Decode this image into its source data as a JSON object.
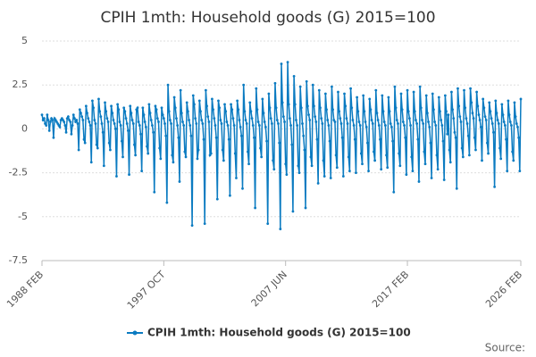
{
  "chart_data": {
    "type": "line",
    "title": "CPIH 1mth: Household goods (G) 2015=100",
    "categories": [
      "1988 FEB",
      null,
      null,
      null,
      null,
      null,
      null,
      null,
      null,
      null,
      null,
      null,
      null,
      null,
      null,
      null,
      null,
      null,
      null,
      null,
      null,
      null,
      null,
      null,
      null,
      null,
      null,
      null,
      null,
      null,
      null,
      null,
      null,
      null,
      null,
      null,
      null,
      null,
      null,
      null,
      null,
      null,
      null,
      null,
      null,
      null,
      null,
      null,
      null,
      null,
      null,
      null,
      null,
      null,
      null,
      null,
      null,
      null,
      null,
      null,
      null,
      null,
      null,
      null,
      null,
      null,
      null,
      null,
      null,
      null,
      null,
      null,
      null,
      null,
      null,
      null,
      null,
      null,
      null,
      null,
      null,
      null,
      null,
      null,
      null,
      null,
      null,
      null,
      null,
      null,
      null,
      null,
      null,
      null,
      null,
      null,
      null,
      null,
      null,
      null,
      null,
      null,
      null,
      null,
      null,
      null,
      null,
      null,
      null,
      null,
      null,
      null,
      null,
      null,
      null,
      null,
      "1997 OCT",
      null,
      null,
      null,
      null,
      null,
      null,
      null,
      null,
      null,
      null,
      null,
      null,
      null,
      null,
      null,
      null,
      null,
      null,
      null,
      null,
      null,
      null,
      null,
      null,
      null,
      null,
      null,
      null,
      null,
      null,
      null,
      null,
      null,
      null,
      null,
      null,
      null,
      null,
      null,
      null,
      null,
      null,
      null,
      null,
      null,
      null,
      null,
      null,
      null,
      null,
      null,
      null,
      null,
      null,
      null,
      null,
      null,
      null,
      null,
      null,
      null,
      null,
      null,
      null,
      null,
      null,
      null,
      null,
      null,
      null,
      null,
      null,
      null,
      null,
      null,
      null,
      null,
      null,
      null,
      null,
      null,
      null,
      null,
      null,
      null,
      null,
      null,
      null,
      null,
      null,
      null,
      null,
      null,
      null,
      null,
      null,
      null,
      null,
      null,
      null,
      null,
      null,
      null,
      null,
      null,
      null,
      null,
      null,
      null,
      null,
      null,
      null,
      null,
      null,
      null,
      "2007 JUN",
      null,
      null,
      null,
      null,
      null,
      null,
      null,
      null,
      null,
      null,
      null,
      null,
      null,
      null,
      null,
      null,
      null,
      null,
      null,
      null,
      null,
      null,
      null,
      null,
      null,
      null,
      null,
      null,
      null,
      null,
      null,
      null,
      null,
      null,
      null,
      null,
      null,
      null,
      null,
      null,
      null,
      null,
      null,
      null,
      null,
      null,
      null,
      null,
      null,
      null,
      null,
      null,
      null,
      null,
      null,
      null,
      null,
      null,
      null,
      null,
      null,
      null,
      null,
      null,
      null,
      null,
      null,
      null,
      null,
      null,
      null,
      null,
      null,
      null,
      null,
      null,
      null,
      null,
      null,
      null,
      null,
      null,
      null,
      null,
      null,
      null,
      null,
      null,
      null,
      null,
      null,
      null,
      null,
      null,
      null,
      null,
      null,
      null,
      null,
      null,
      null,
      null,
      null,
      null,
      null,
      null,
      null,
      null,
      null,
      null,
      null,
      null,
      null,
      null,
      null,
      "2017 FEB",
      null,
      null,
      null,
      null,
      null,
      null,
      null,
      null,
      null,
      null,
      null,
      null,
      null,
      null,
      null,
      null,
      null,
      null,
      null,
      null,
      null,
      null,
      null,
      null,
      null,
      null,
      null,
      null,
      null,
      null,
      null,
      null,
      null,
      null,
      null,
      null,
      null,
      null,
      null,
      null,
      null,
      null,
      null,
      null,
      null,
      null,
      null,
      null,
      null,
      null,
      null,
      null,
      null,
      null,
      null,
      null,
      null,
      null,
      null,
      null,
      null,
      null,
      null,
      null,
      null,
      null,
      null,
      null,
      null,
      null,
      null,
      null,
      null,
      null,
      null,
      null,
      null,
      null,
      null,
      null,
      null,
      null,
      null,
      null,
      null,
      null,
      null,
      null,
      null,
      null,
      null,
      null,
      null,
      null,
      null,
      null,
      null,
      null,
      null,
      null,
      null,
      null,
      null,
      null,
      null,
      null,
      null,
      "2026 FEB"
    ],
    "series": [
      {
        "name": "CPIH 1mth: Household goods (G) 2015=100",
        "color": "#0b7bc1",
        "values": [
          0.8,
          0.5,
          0.6,
          0.3,
          0.2,
          0.8,
          0.5,
          -0.1,
          0.4,
          0.6,
          0.5,
          -0.5,
          0.6,
          0.5,
          0.4,
          0.3,
          0.2,
          0.1,
          0.5,
          0.6,
          0.5,
          0.4,
          0.2,
          -0.2,
          0.6,
          0.7,
          0.5,
          0.4,
          -0.3,
          0.2,
          0.8,
          0.6,
          0.4,
          0.5,
          0.3,
          -1.2,
          1.1,
          0.9,
          0.7,
          0.5,
          -0.6,
          -0.8,
          1.3,
          0.9,
          0.6,
          0.4,
          0.2,
          -1.9,
          1.6,
          1.2,
          0.5,
          0.3,
          -0.9,
          -1.1,
          1.7,
          1.0,
          0.7,
          0.3,
          -0.2,
          -2.1,
          1.5,
          1.0,
          0.6,
          0.4,
          -0.8,
          -1.2,
          1.3,
          0.9,
          0.5,
          0.3,
          0.0,
          -2.7,
          1.4,
          1.1,
          0.4,
          0.2,
          -0.7,
          -1.6,
          1.2,
          1.0,
          0.6,
          0.3,
          -0.1,
          -2.6,
          1.3,
          0.9,
          0.5,
          0.3,
          -0.9,
          -1.5,
          1.1,
          1.2,
          0.4,
          0.2,
          -0.3,
          -2.4,
          1.2,
          0.8,
          0.4,
          0.1,
          -1.0,
          -1.4,
          1.4,
          0.9,
          0.5,
          0.2,
          -0.2,
          -3.6,
          1.3,
          1.1,
          0.6,
          0.4,
          -1.1,
          -1.7,
          1.2,
          0.8,
          0.6,
          0.3,
          -0.4,
          -4.2,
          2.5,
          1.0,
          0.5,
          0.3,
          -1.5,
          -1.9,
          1.8,
          1.2,
          0.6,
          0.2,
          -0.5,
          -3.0,
          2.2,
          0.9,
          0.4,
          0.2,
          -1.3,
          -1.6,
          1.5,
          1.0,
          0.5,
          0.2,
          -0.4,
          -5.5,
          1.9,
          1.4,
          0.6,
          0.3,
          -1.7,
          -1.2,
          1.6,
          1.0,
          0.5,
          0.3,
          -0.6,
          -5.4,
          2.2,
          1.3,
          0.7,
          0.4,
          -1.5,
          -1.4,
          1.7,
          1.1,
          0.6,
          0.2,
          -0.5,
          -4.0,
          1.6,
          1.2,
          0.5,
          0.3,
          -1.2,
          -1.8,
          1.4,
          1.0,
          0.4,
          0.2,
          -0.6,
          -3.8,
          1.4,
          1.1,
          0.6,
          0.2,
          -1.4,
          -2.8,
          1.6,
          1.1,
          0.5,
          0.1,
          -0.4,
          -3.4,
          2.5,
          1.0,
          0.5,
          0.3,
          -1.3,
          -2.0,
          1.5,
          1.0,
          0.6,
          0.2,
          -0.5,
          -4.5,
          2.3,
          1.1,
          0.4,
          0.2,
          -1.1,
          -1.6,
          1.7,
          0.9,
          0.4,
          0.1,
          -0.7,
          -5.4,
          2.0,
          1.2,
          0.6,
          0.3,
          -1.8,
          -2.3,
          2.6,
          1.2,
          0.5,
          0.3,
          -0.8,
          -5.7,
          3.7,
          1.5,
          0.7,
          0.4,
          -2.0,
          -2.6,
          3.8,
          1.4,
          0.6,
          0.2,
          -0.9,
          -4.7,
          3.0,
          1.4,
          0.5,
          0.2,
          -2.1,
          -2.5,
          2.4,
          1.2,
          0.3,
          -0.4,
          -1.2,
          -4.5,
          2.7,
          1.3,
          0.8,
          0.5,
          -1.6,
          -2.1,
          2.5,
          1.3,
          0.7,
          0.4,
          -0.6,
          -3.1,
          2.2,
          1.2,
          0.6,
          0.3,
          -1.8,
          -2.7,
          2.0,
          1.1,
          0.5,
          0.2,
          -0.7,
          -2.8,
          2.4,
          1.1,
          0.5,
          0.4,
          -1.5,
          -2.2,
          2.1,
          1.0,
          0.6,
          0.3,
          -0.5,
          -2.7,
          2.0,
          1.3,
          0.6,
          0.3,
          -1.6,
          -2.4,
          2.3,
          1.2,
          0.5,
          0.2,
          -0.6,
          -2.5,
          1.8,
          1.0,
          0.4,
          0.2,
          -1.4,
          -2.0,
          1.9,
          1.0,
          0.4,
          0.1,
          -0.8,
          -2.4,
          1.7,
          1.1,
          0.5,
          0.3,
          -1.3,
          -1.8,
          2.2,
          0.9,
          0.5,
          0.2,
          -0.6,
          -2.3,
          1.9,
          1.0,
          0.4,
          0.2,
          -1.5,
          -2.2,
          1.8,
          1.0,
          0.3,
          0.1,
          -0.7,
          -3.6,
          2.4,
          1.2,
          0.5,
          0.3,
          -1.4,
          -2.1,
          2.0,
          1.1,
          0.4,
          0.2,
          -0.5,
          -2.6,
          2.2,
          1.0,
          0.6,
          0.2,
          -1.6,
          -2.4,
          2.1,
          1.0,
          0.5,
          0.3,
          -0.6,
          -3.0,
          2.4,
          1.2,
          0.5,
          0.3,
          -1.3,
          -2.0,
          1.9,
          0.9,
          0.4,
          0.1,
          -0.8,
          -2.8,
          2.0,
          1.1,
          0.4,
          0.2,
          -1.5,
          -2.3,
          1.8,
          1.0,
          0.5,
          0.2,
          -0.7,
          -2.9,
          1.9,
          1.0,
          -0.3,
          0.8,
          -1.2,
          -1.9,
          2.1,
          1.1,
          0.6,
          -0.2,
          -0.5,
          -3.4,
          2.3,
          1.3,
          0.7,
          0.4,
          -1.1,
          -1.6,
          2.2,
          1.2,
          0.6,
          0.3,
          -0.4,
          -1.5,
          2.3,
          1.5,
          0.9,
          0.6,
          -0.5,
          -1.2,
          2.1,
          1.3,
          0.8,
          0.5,
          0.1,
          -1.8,
          1.7,
          1.2,
          0.7,
          0.5,
          -0.8,
          -1.4,
          1.5,
          1.0,
          0.6,
          0.3,
          -0.2,
          -3.3,
          1.6,
          0.9,
          0.5,
          0.3,
          -1.1,
          -1.7,
          1.4,
          0.8,
          0.4,
          0.2,
          -0.6,
          -2.4,
          1.6,
          0.8,
          0.4,
          0.2,
          -1.3,
          -1.8,
          1.5,
          0.7,
          0.3,
          0.1,
          -0.5,
          -2.4,
          1.7
        ]
      }
    ],
    "ylim": [
      -7.5,
      5
    ],
    "yticks": [
      -7.5,
      -5,
      -2.5,
      0,
      2.5,
      5
    ],
    "grid": true,
    "legend": "bottom",
    "source": "Source:"
  }
}
